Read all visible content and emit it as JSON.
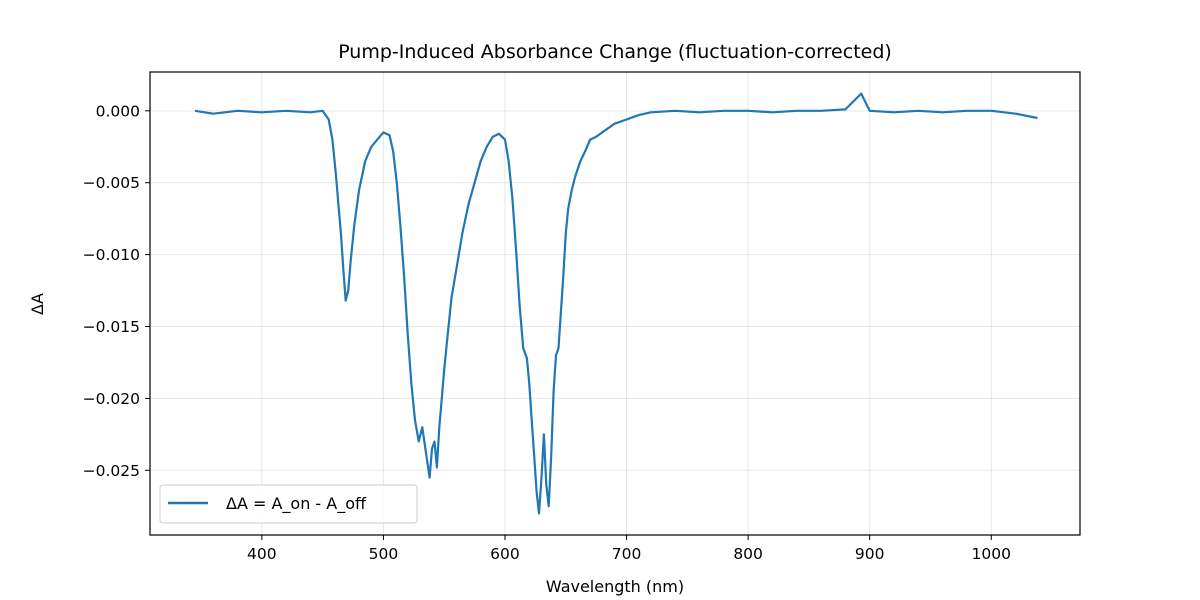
{
  "chart_data": {
    "type": "line",
    "title": "Pump-Induced Absorbance Change (fluctuation-corrected)",
    "xlabel": "Wavelength (nm)",
    "ylabel": "ΔA",
    "xlim": [
      308,
      1073
    ],
    "ylim": [
      -0.0295,
      0.0027
    ],
    "x_ticks": [
      400,
      500,
      600,
      700,
      800,
      900,
      1000
    ],
    "x_tick_labels": [
      "400",
      "500",
      "600",
      "700",
      "800",
      "900",
      "1000"
    ],
    "y_ticks": [
      0.0,
      -0.005,
      -0.01,
      -0.015,
      -0.02,
      -0.025
    ],
    "y_tick_labels": [
      "0.000",
      "−0.005",
      "−0.010",
      "−0.015",
      "−0.020",
      "−0.025"
    ],
    "grid": true,
    "legend_position": "lower-left",
    "series": [
      {
        "name": "ΔA = A_on - A_off",
        "color": "#1f77b4",
        "x": [
          345,
          360,
          380,
          400,
          420,
          440,
          450,
          455,
          458,
          461,
          463,
          465,
          467,
          469,
          471,
          473,
          476,
          480,
          485,
          490,
          495,
          500,
          505,
          508,
          511,
          514,
          517,
          520,
          523,
          526,
          529,
          532,
          535,
          538,
          540,
          542,
          544,
          546,
          548,
          550,
          553,
          556,
          560,
          565,
          570,
          575,
          580,
          585,
          590,
          595,
          600,
          603,
          606,
          609,
          612,
          615,
          618,
          620,
          622,
          624,
          626,
          628,
          630,
          632,
          634,
          636,
          638,
          640,
          642,
          644,
          646,
          648,
          650,
          652,
          655,
          658,
          662,
          666,
          670,
          675,
          680,
          690,
          700,
          710,
          720,
          740,
          760,
          780,
          800,
          820,
          840,
          860,
          880,
          893,
          900,
          920,
          940,
          960,
          980,
          1000,
          1020,
          1038
        ],
        "y": [
          0.0,
          -0.0002,
          0.0,
          -0.0001,
          0.0,
          -0.0001,
          0.0,
          -0.0006,
          -0.002,
          -0.0045,
          -0.0065,
          -0.0085,
          -0.011,
          -0.0132,
          -0.0125,
          -0.0105,
          -0.008,
          -0.0055,
          -0.0035,
          -0.0025,
          -0.002,
          -0.0015,
          -0.0017,
          -0.0028,
          -0.005,
          -0.008,
          -0.0115,
          -0.0155,
          -0.019,
          -0.0215,
          -0.023,
          -0.022,
          -0.0238,
          -0.0255,
          -0.0235,
          -0.023,
          -0.0248,
          -0.022,
          -0.02,
          -0.018,
          -0.0155,
          -0.013,
          -0.011,
          -0.0085,
          -0.0065,
          -0.005,
          -0.0035,
          -0.0025,
          -0.0018,
          -0.0016,
          -0.002,
          -0.0035,
          -0.006,
          -0.0095,
          -0.0135,
          -0.0165,
          -0.0172,
          -0.019,
          -0.0215,
          -0.024,
          -0.0265,
          -0.028,
          -0.0255,
          -0.0225,
          -0.026,
          -0.0275,
          -0.024,
          -0.0195,
          -0.017,
          -0.0165,
          -0.014,
          -0.0115,
          -0.0085,
          -0.0068,
          -0.0055,
          -0.0045,
          -0.0035,
          -0.0028,
          -0.002,
          -0.0018,
          -0.0015,
          -0.0009,
          -0.0006,
          -0.0003,
          -0.0001,
          0.0,
          -0.0001,
          0.0,
          0.0,
          -0.0001,
          0.0,
          0.0,
          0.0001,
          0.0012,
          0.0,
          -0.0001,
          0.0,
          -0.0001,
          0.0,
          0.0,
          -0.0002,
          -0.0005
        ]
      }
    ]
  }
}
